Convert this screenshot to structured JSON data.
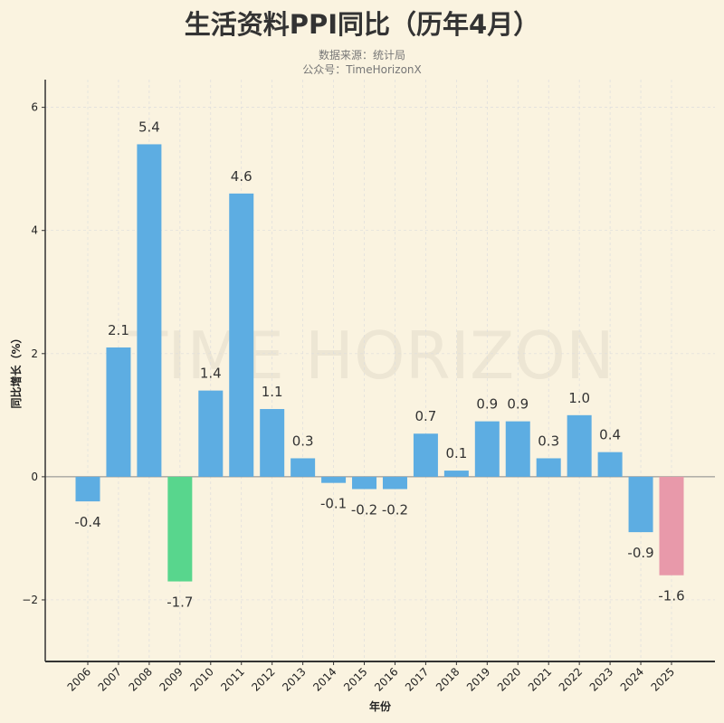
{
  "chart_data": {
    "type": "bar",
    "title": "生活资料PPI同比（历年4月）",
    "subtitle": [
      "数据来源：统计局",
      "公众号：TimeHorizonX"
    ],
    "watermark": "TIME HORIZON",
    "xlabel": "年份",
    "ylabel": "同比增长（%）",
    "ylim": [
      -3,
      6.45
    ],
    "yticks": [
      -2,
      0,
      2,
      4,
      6
    ],
    "grid": true,
    "categories": [
      "2006",
      "2007",
      "2008",
      "2009",
      "2010",
      "2011",
      "2012",
      "2013",
      "2014",
      "2015",
      "2016",
      "2017",
      "2018",
      "2019",
      "2020",
      "2021",
      "2022",
      "2023",
      "2024",
      "2025"
    ],
    "values": [
      -0.4,
      2.1,
      5.4,
      -1.7,
      1.4,
      4.6,
      1.1,
      0.3,
      -0.1,
      -0.2,
      -0.2,
      0.7,
      0.1,
      0.9,
      0.9,
      0.3,
      1.0,
      0.4,
      -0.9,
      -1.6
    ],
    "data_labels": [
      "-0.4",
      "2.1",
      "5.4",
      "-1.7",
      "1.4",
      "4.6",
      "1.1",
      "0.3",
      "-0.1",
      "-0.2",
      "-0.2",
      "0.7",
      "0.1",
      "0.9",
      "0.9",
      "0.3",
      "1.0",
      "0.4",
      "-0.9",
      "-1.6"
    ],
    "colors": {
      "default": "#5DADE2",
      "highlight_min": "#58D68D",
      "latest": "#E899AA",
      "background": "#FAF3E0"
    }
  }
}
